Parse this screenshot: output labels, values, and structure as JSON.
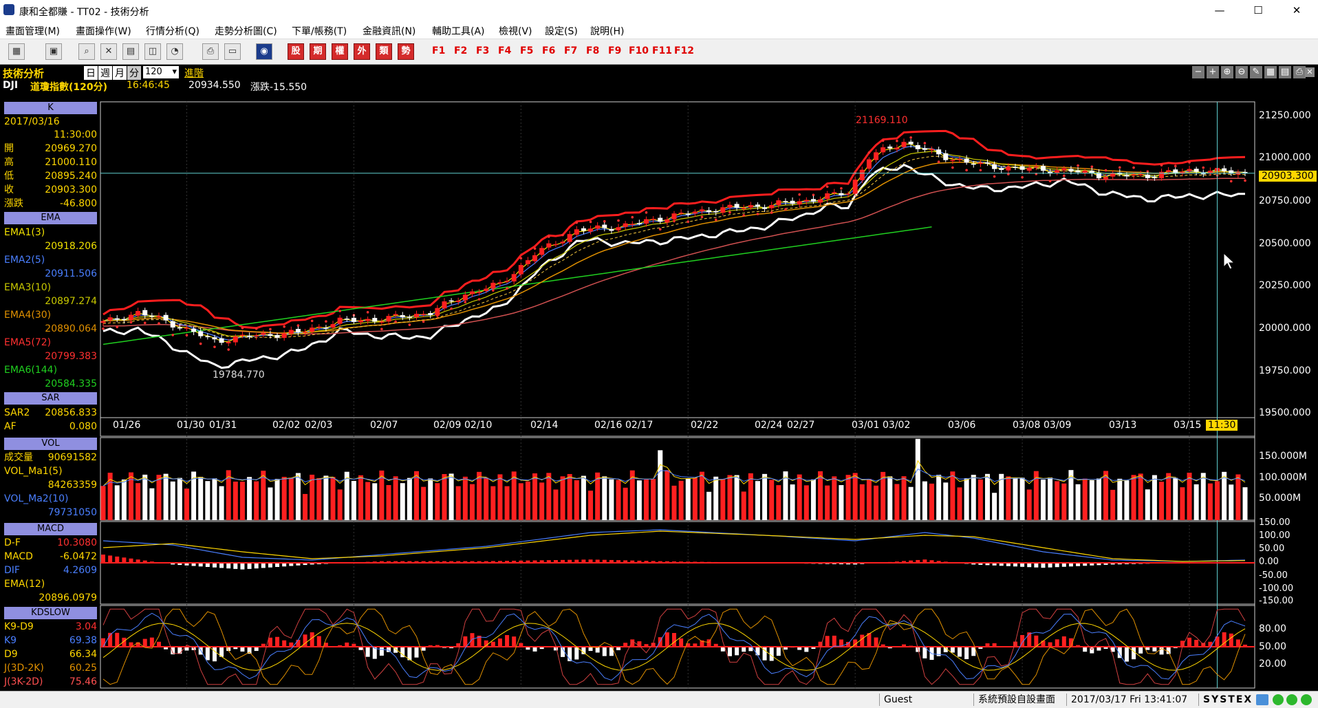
{
  "window": {
    "title": "康和全都賺 - TT02 - 技術分析",
    "minimize": "—",
    "maximize": "☐",
    "close": "✕"
  },
  "menu": [
    "畫面管理(M)",
    "畫面操作(W)",
    "行情分析(Q)",
    "走勢分析圖(C)",
    "下單/帳務(T)",
    "金融資訊(N)",
    "輔助工具(A)",
    "檢視(V)",
    "設定(S)",
    "說明(H)"
  ],
  "toolbar": {
    "red_buttons": [
      "股",
      "期",
      "權",
      "外",
      "類",
      "勢"
    ],
    "fkeys": [
      "F1",
      "F2",
      "F3",
      "F4",
      "F5",
      "F6",
      "F7",
      "F8",
      "F9",
      "F10",
      "F11",
      "F12"
    ]
  },
  "header": {
    "module": "技術分析",
    "periods": [
      "日",
      "週",
      "月",
      "分"
    ],
    "interval": "120",
    "advanced": "進階",
    "symbol": "DJI",
    "name": "道瓊指數(120分)",
    "time": "16:46:45",
    "price": "20934.550",
    "change": "漲跌-15.550"
  },
  "k_panel": {
    "title": "K",
    "date": "2017/03/16",
    "time": "11:30:00",
    "rows": [
      {
        "label": "開",
        "value": "20969.270"
      },
      {
        "label": "高",
        "value": "21000.110"
      },
      {
        "label": "低",
        "value": "20895.240"
      },
      {
        "label": "收",
        "value": "20903.300"
      },
      {
        "label": "漲跌",
        "value": "-46.800"
      }
    ]
  },
  "ema_panel": {
    "title": "EMA",
    "rows": [
      {
        "label": "EMA1(3)",
        "value": "20918.206",
        "color": "#f0e000"
      },
      {
        "label": "EMA2(5)",
        "value": "20911.506",
        "color": "#4a7fff"
      },
      {
        "label": "EMA3(10)",
        "value": "20897.274",
        "color": "#c8c800"
      },
      {
        "label": "EMA4(30)",
        "value": "20890.064",
        "color": "#e09000"
      },
      {
        "label": "EMA5(72)",
        "value": "20799.383",
        "color": "#ff3030"
      },
      {
        "label": "EMA6(144)",
        "value": "20584.335",
        "color": "#20d020"
      }
    ]
  },
  "sar_panel": {
    "title": "SAR",
    "rows": [
      {
        "label": "SAR2",
        "value": "20856.833"
      },
      {
        "label": "AF",
        "value": "0.080"
      }
    ]
  },
  "vol_panel": {
    "title": "VOL",
    "rows": [
      {
        "label": "成交量",
        "value": "90691582"
      },
      {
        "label": "VOL_Ma1(5)",
        "value": "84263359"
      },
      {
        "label": "VOL_Ma2(10)",
        "value": "79731050"
      }
    ]
  },
  "macd_panel": {
    "title": "MACD",
    "rows": [
      {
        "label": "D-F",
        "value": "10.3080"
      },
      {
        "label": "MACD",
        "value": "-6.0472"
      },
      {
        "label": "DIF",
        "value": "4.2609"
      },
      {
        "label": "EMA(12)",
        "value": "20896.0979"
      }
    ]
  },
  "kd_panel": {
    "title": "KDSLOW",
    "rows": [
      {
        "label": "K9-D9",
        "value": "3.04"
      },
      {
        "label": "K9",
        "value": "69.38"
      },
      {
        "label": "D9",
        "value": "66.34"
      },
      {
        "label": "J(3D-2K)",
        "value": "60.25"
      },
      {
        "label": "J(3K-2D)",
        "value": "75.46"
      }
    ]
  },
  "price_axis": [
    "21250.000",
    "21000.000",
    "20750.000",
    "20500.000",
    "20250.000",
    "20000.000",
    "19750.000",
    "19500.000"
  ],
  "current_price_tag": "20903.300",
  "high_label": "21169.110",
  "low_label": "19784.770",
  "x_labels": [
    "01/26",
    "01/30",
    "01/31",
    "02/02",
    "02/03",
    "02/07",
    "02/09",
    "02/10",
    "02/14",
    "02/16",
    "02/17",
    "02/22",
    "02/24",
    "02/27",
    "03/01",
    "03/02",
    "03/06",
    "03/08",
    "03/09",
    "03/13",
    "03/15"
  ],
  "cursor_time": "11:30",
  "vol_axis": [
    "150.000M",
    "100.000M",
    "50.000M"
  ],
  "macd_axis": [
    "150.00",
    "100.00",
    "50.00",
    "0.00",
    "-50.00",
    "-100.00",
    "-150.00"
  ],
  "kd_axis": [
    "80.00",
    "50.00",
    "20.00"
  ],
  "status": {
    "user": "Guest",
    "layout": "系統預設自設畫面",
    "datetime": "2017/03/17 Fri 13:41:07",
    "brand": "SYSTEX"
  },
  "chart_data": {
    "type": "candlestick",
    "ylim": [
      19450,
      21330
    ],
    "close_anchors": [
      [
        0,
        20010
      ],
      [
        5,
        20070
      ],
      [
        9,
        20020
      ],
      [
        13,
        19950
      ],
      [
        16,
        19900
      ],
      [
        21,
        19930
      ],
      [
        28,
        19950
      ],
      [
        34,
        20020
      ],
      [
        40,
        20030
      ],
      [
        47,
        20070
      ],
      [
        52,
        20180
      ],
      [
        57,
        20240
      ],
      [
        62,
        20420
      ],
      [
        68,
        20560
      ],
      [
        75,
        20590
      ],
      [
        82,
        20650
      ],
      [
        88,
        20690
      ],
      [
        95,
        20710
      ],
      [
        101,
        20740
      ],
      [
        107,
        20790
      ],
      [
        110,
        21000
      ],
      [
        115,
        21090
      ],
      [
        120,
        21010
      ],
      [
        126,
        20950
      ],
      [
        132,
        20930
      ],
      [
        138,
        20920
      ],
      [
        144,
        20890
      ],
      [
        150,
        20890
      ],
      [
        156,
        20920
      ],
      [
        162,
        20910
      ],
      [
        164,
        20903
      ]
    ],
    "macd_dif_anchors": [
      [
        0,
        80
      ],
      [
        10,
        65
      ],
      [
        20,
        20
      ],
      [
        30,
        10
      ],
      [
        40,
        30
      ],
      [
        55,
        60
      ],
      [
        70,
        110
      ],
      [
        80,
        120
      ],
      [
        95,
        100
      ],
      [
        108,
        80
      ],
      [
        118,
        110
      ],
      [
        125,
        90
      ],
      [
        135,
        40
      ],
      [
        145,
        10
      ],
      [
        155,
        5
      ],
      [
        164,
        10
      ]
    ],
    "macd_ema_anchors": [
      [
        0,
        55
      ],
      [
        10,
        70
      ],
      [
        20,
        40
      ],
      [
        30,
        15
      ],
      [
        40,
        25
      ],
      [
        55,
        55
      ],
      [
        70,
        100
      ],
      [
        80,
        115
      ],
      [
        95,
        100
      ],
      [
        108,
        85
      ],
      [
        118,
        100
      ],
      [
        125,
        95
      ],
      [
        135,
        55
      ],
      [
        145,
        15
      ],
      [
        155,
        5
      ],
      [
        164,
        8
      ]
    ]
  }
}
